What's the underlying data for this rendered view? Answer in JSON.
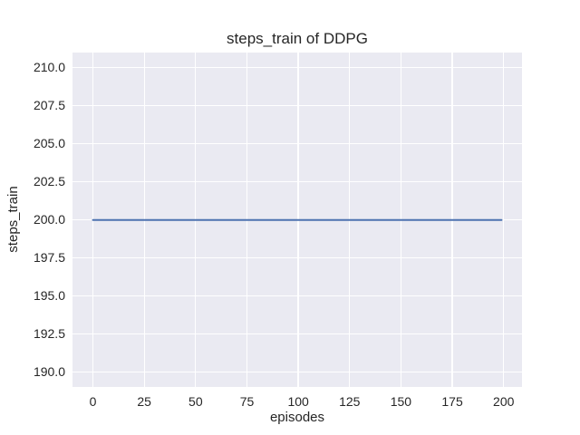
{
  "chart_data": {
    "type": "line",
    "title": "steps_train of DDPG",
    "xlabel": "episodes",
    "ylabel": "steps_train",
    "grid": true,
    "legend": "none",
    "x_axis": {
      "lim": [
        -9.95,
        208.95
      ],
      "ticks": [
        {
          "v": 0,
          "t": "0"
        },
        {
          "v": 25,
          "t": "25"
        },
        {
          "v": 50,
          "t": "50"
        },
        {
          "v": 75,
          "t": "75"
        },
        {
          "v": 100,
          "t": "100"
        },
        {
          "v": 125,
          "t": "125"
        },
        {
          "v": 150,
          "t": "150"
        },
        {
          "v": 175,
          "t": "175"
        },
        {
          "v": 200,
          "t": "200"
        }
      ]
    },
    "y_axis": {
      "lim": [
        189.0,
        211.0
      ],
      "ticks": [
        {
          "v": 190.0,
          "t": "190.0"
        },
        {
          "v": 192.5,
          "t": "192.5"
        },
        {
          "v": 195.0,
          "t": "195.0"
        },
        {
          "v": 197.5,
          "t": "197.5"
        },
        {
          "v": 200.0,
          "t": "200.0"
        },
        {
          "v": 202.5,
          "t": "202.5"
        },
        {
          "v": 205.0,
          "t": "205.0"
        },
        {
          "v": 207.5,
          "t": "207.5"
        },
        {
          "v": 210.0,
          "t": "210.0"
        }
      ]
    },
    "series": [
      {
        "name": "steps_train",
        "x": [
          0,
          199
        ],
        "y": [
          200,
          200
        ],
        "color": "#4C72B0",
        "line_width": 2
      }
    ],
    "colors": {
      "figure_background": "#FFFFFF",
      "plot_background": "#EAEAF2",
      "grid": "#FFFFFF",
      "text": "#262626",
      "accent_line": "#4C72B0"
    }
  }
}
